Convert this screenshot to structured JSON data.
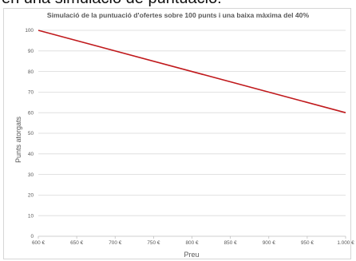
{
  "header": {
    "caption": "en una simulació de puntuació:"
  },
  "colors": {
    "line": "#c0191c",
    "grid": "#d9d9d9",
    "text": "#595959"
  },
  "chart_data": {
    "type": "line",
    "title": "Simulació de la puntuació d'ofertes sobre 100 punts i una baixa màxima del 40%",
    "xlabel": "Preu",
    "ylabel": "Punts atorgats",
    "xlim": [
      600,
      1000
    ],
    "ylim": [
      0,
      100
    ],
    "x_ticks": [
      600,
      650,
      700,
      750,
      800,
      850,
      900,
      950,
      1000
    ],
    "x_tick_labels": [
      "600 €",
      "650 €",
      "700 €",
      "750 €",
      "800 €",
      "850 €",
      "900 €",
      "950 €",
      "1.000 €"
    ],
    "y_ticks": [
      0,
      10,
      20,
      30,
      40,
      50,
      60,
      70,
      80,
      90,
      100
    ],
    "y_tick_labels": [
      "0",
      "10",
      "20",
      "30",
      "40",
      "50",
      "60",
      "70",
      "80",
      "90",
      "100"
    ],
    "grid": true,
    "legend": "none",
    "series": [
      {
        "x": [
          600,
          1000
        ],
        "y": [
          100,
          60
        ]
      }
    ]
  }
}
